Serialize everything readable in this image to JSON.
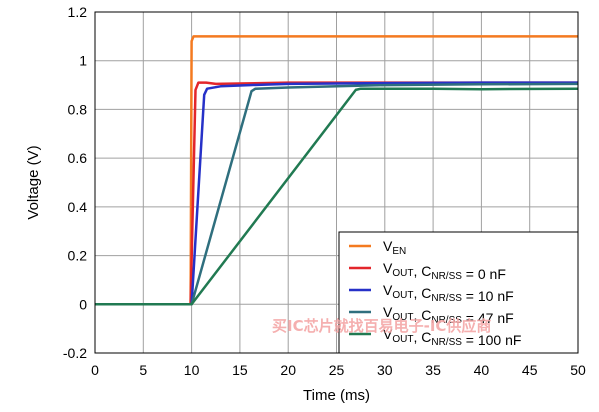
{
  "chart_data": {
    "type": "line",
    "title": "",
    "xlabel": "Time (ms)",
    "ylabel": "Voltage (V)",
    "xlim": [
      0,
      50
    ],
    "ylim": [
      -0.2,
      1.2
    ],
    "x_ticks": [
      "0",
      "5",
      "10",
      "15",
      "20",
      "25",
      "30",
      "35",
      "40",
      "45",
      "50"
    ],
    "y_ticks": [
      "-0.2",
      "0",
      "0.2",
      "0.4",
      "0.6",
      "0.8",
      "1",
      "1.2"
    ],
    "x_tick_values": [
      0,
      5,
      10,
      15,
      20,
      25,
      30,
      35,
      40,
      45,
      50
    ],
    "y_tick_values": [
      -0.2,
      0,
      0.2,
      0.4,
      0.6,
      0.8,
      1.0,
      1.2
    ],
    "grid": true,
    "legend_position": "bottom-right",
    "series": [
      {
        "legend": {
          "main": "V",
          "sub": "EN",
          "rest": ""
        },
        "color": "#f47a20",
        "x": [
          0,
          9.9,
          10.0,
          10.2,
          50
        ],
        "y": [
          0,
          0,
          1.08,
          1.1,
          1.1
        ]
      },
      {
        "legend": {
          "main": "V",
          "sub": "OUT",
          "rest": ", C",
          "sub2": "NR/SS",
          "rest2": " = 0 nF"
        },
        "color": "#e3262b",
        "x": [
          0,
          9.9,
          10.4,
          10.7,
          11.5,
          12.5,
          20,
          30,
          40,
          50
        ],
        "y": [
          0,
          0,
          0.88,
          0.91,
          0.91,
          0.905,
          0.91,
          0.91,
          0.91,
          0.91
        ]
      },
      {
        "legend": {
          "main": "V",
          "sub": "OUT",
          "rest": ", C",
          "sub2": "NR/SS",
          "rest2": " = 10 nF"
        },
        "color": "#2631c8",
        "x": [
          0,
          10.0,
          11.3,
          11.6,
          13,
          16,
          20,
          30,
          40,
          50
        ],
        "y": [
          0,
          0,
          0.86,
          0.885,
          0.895,
          0.9,
          0.905,
          0.908,
          0.91,
          0.91
        ]
      },
      {
        "legend": {
          "main": "V",
          "sub": "OUT",
          "rest": ", C",
          "sub2": "NR/SS",
          "rest2": " = 47 nF"
        },
        "color": "#2f6f7e",
        "x": [
          0,
          10.0,
          16.2,
          16.6,
          20,
          30,
          40,
          50
        ],
        "y": [
          0,
          0,
          0.875,
          0.885,
          0.89,
          0.9,
          0.903,
          0.905
        ]
      },
      {
        "legend": {
          "main": "V",
          "sub": "OUT",
          "rest": ", C",
          "sub2": "NR/SS",
          "rest2": " = 100 nF"
        },
        "color": "#217a52",
        "x": [
          0,
          10.0,
          27.0,
          27.5,
          35,
          40,
          50
        ],
        "y": [
          0,
          0,
          0.88,
          0.885,
          0.885,
          0.883,
          0.885
        ]
      }
    ]
  },
  "watermark": "买IC芯片就找百易电子-IC供应商"
}
